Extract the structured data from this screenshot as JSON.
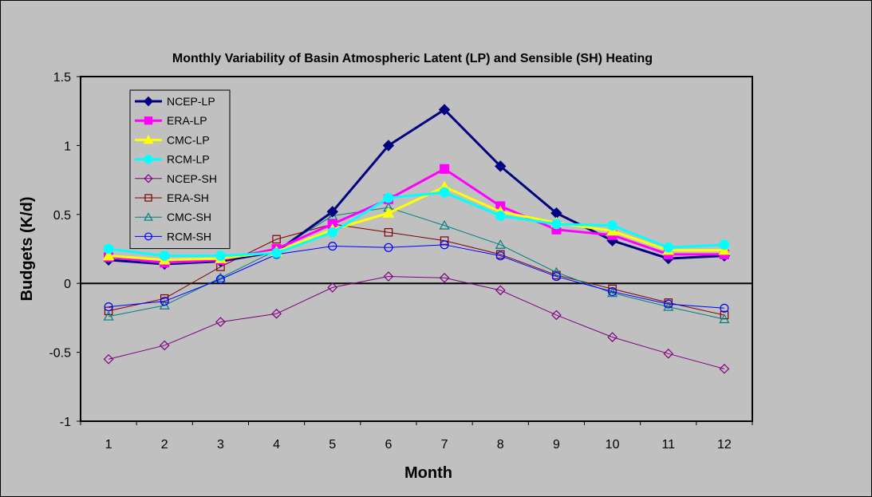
{
  "chart_data": {
    "type": "line",
    "title": "Monthly Variability of Basin Atmospheric Latent (LP) and Sensible (SH) Heating",
    "xlabel": "Month",
    "ylabel": "Budgets (K/d)",
    "categories": [
      "1",
      "2",
      "3",
      "4",
      "5",
      "6",
      "7",
      "8",
      "9",
      "10",
      "11",
      "12"
    ],
    "ylim": [
      -1,
      1.5
    ],
    "yticks": [
      "1.5",
      "1",
      "0.5",
      "0",
      "-0.5",
      "-1"
    ],
    "ytick_values": [
      1.5,
      1,
      0.5,
      0,
      -0.5,
      -1
    ],
    "grid": false,
    "legend_position": "top-left",
    "plot_background": "#c0c0c0",
    "series": [
      {
        "name": "NCEP-LP",
        "color": "#000080",
        "marker": "diamond",
        "filled": true,
        "bold": true,
        "values": [
          0.17,
          0.14,
          0.16,
          0.23,
          0.52,
          1.0,
          1.26,
          0.85,
          0.51,
          0.31,
          0.18,
          0.2
        ]
      },
      {
        "name": "ERA-LP",
        "color": "#ff00ff",
        "marker": "square",
        "filled": true,
        "bold": true,
        "values": [
          0.19,
          0.15,
          0.17,
          0.25,
          0.43,
          0.61,
          0.83,
          0.56,
          0.39,
          0.35,
          0.21,
          0.21
        ]
      },
      {
        "name": "CMC-LP",
        "color": "#ffff00",
        "marker": "triangle",
        "filled": true,
        "bold": true,
        "values": [
          0.2,
          0.17,
          0.18,
          0.23,
          0.39,
          0.51,
          0.7,
          0.52,
          0.44,
          0.38,
          0.24,
          0.24
        ]
      },
      {
        "name": "RCM-LP",
        "color": "#00ffff",
        "marker": "circle",
        "filled": true,
        "bold": true,
        "values": [
          0.25,
          0.2,
          0.2,
          0.22,
          0.37,
          0.62,
          0.66,
          0.49,
          0.43,
          0.42,
          0.26,
          0.28
        ]
      },
      {
        "name": "NCEP-SH",
        "color": "#800080",
        "marker": "diamond",
        "filled": false,
        "bold": false,
        "values": [
          -0.55,
          -0.45,
          -0.28,
          -0.22,
          -0.03,
          0.05,
          0.04,
          -0.05,
          -0.23,
          -0.39,
          -0.51,
          -0.62
        ]
      },
      {
        "name": "ERA-SH",
        "color": "#800000",
        "marker": "square",
        "filled": false,
        "bold": false,
        "values": [
          -0.2,
          -0.11,
          0.12,
          0.32,
          0.43,
          0.37,
          0.31,
          0.21,
          0.06,
          -0.04,
          -0.14,
          -0.23
        ]
      },
      {
        "name": "CMC-SH",
        "color": "#008080",
        "marker": "triangle",
        "filled": false,
        "bold": false,
        "values": [
          -0.24,
          -0.16,
          0.04,
          0.24,
          0.49,
          0.55,
          0.42,
          0.28,
          0.08,
          -0.07,
          -0.17,
          -0.26
        ]
      },
      {
        "name": "RCM-SH",
        "color": "#0000ff",
        "marker": "circle",
        "filled": false,
        "bold": false,
        "values": [
          -0.17,
          -0.13,
          0.03,
          0.21,
          0.27,
          0.26,
          0.28,
          0.2,
          0.05,
          -0.06,
          -0.15,
          -0.18
        ]
      }
    ]
  }
}
